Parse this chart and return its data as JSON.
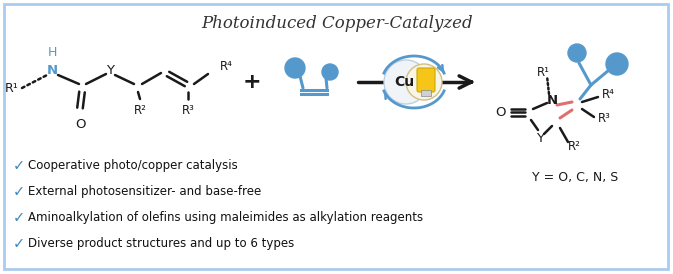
{
  "title": "Photoinduced Copper-Catalyzed",
  "title_fontsize": 12,
  "title_color": "#333333",
  "background_color": "#ffffff",
  "border_color": "#aaccee",
  "bullet_color": "#4488bb",
  "bullet_points": [
    "Cooperative photo/copper catalysis",
    "External photosensitizer- and base-free",
    "Aminoalkylation of olefins using maleimides as alkylation reagents",
    "Diverse product structures and up to 6 types"
  ],
  "bullet_fontsize": 8.5,
  "blue": "#5599cc",
  "pink": "#e07070",
  "black": "#1a1a1a",
  "cu_bg": "#e8f0f8",
  "yellow": "#f5c518",
  "text_dark": "#111111",
  "light_blue_bg": "#ddeeff"
}
